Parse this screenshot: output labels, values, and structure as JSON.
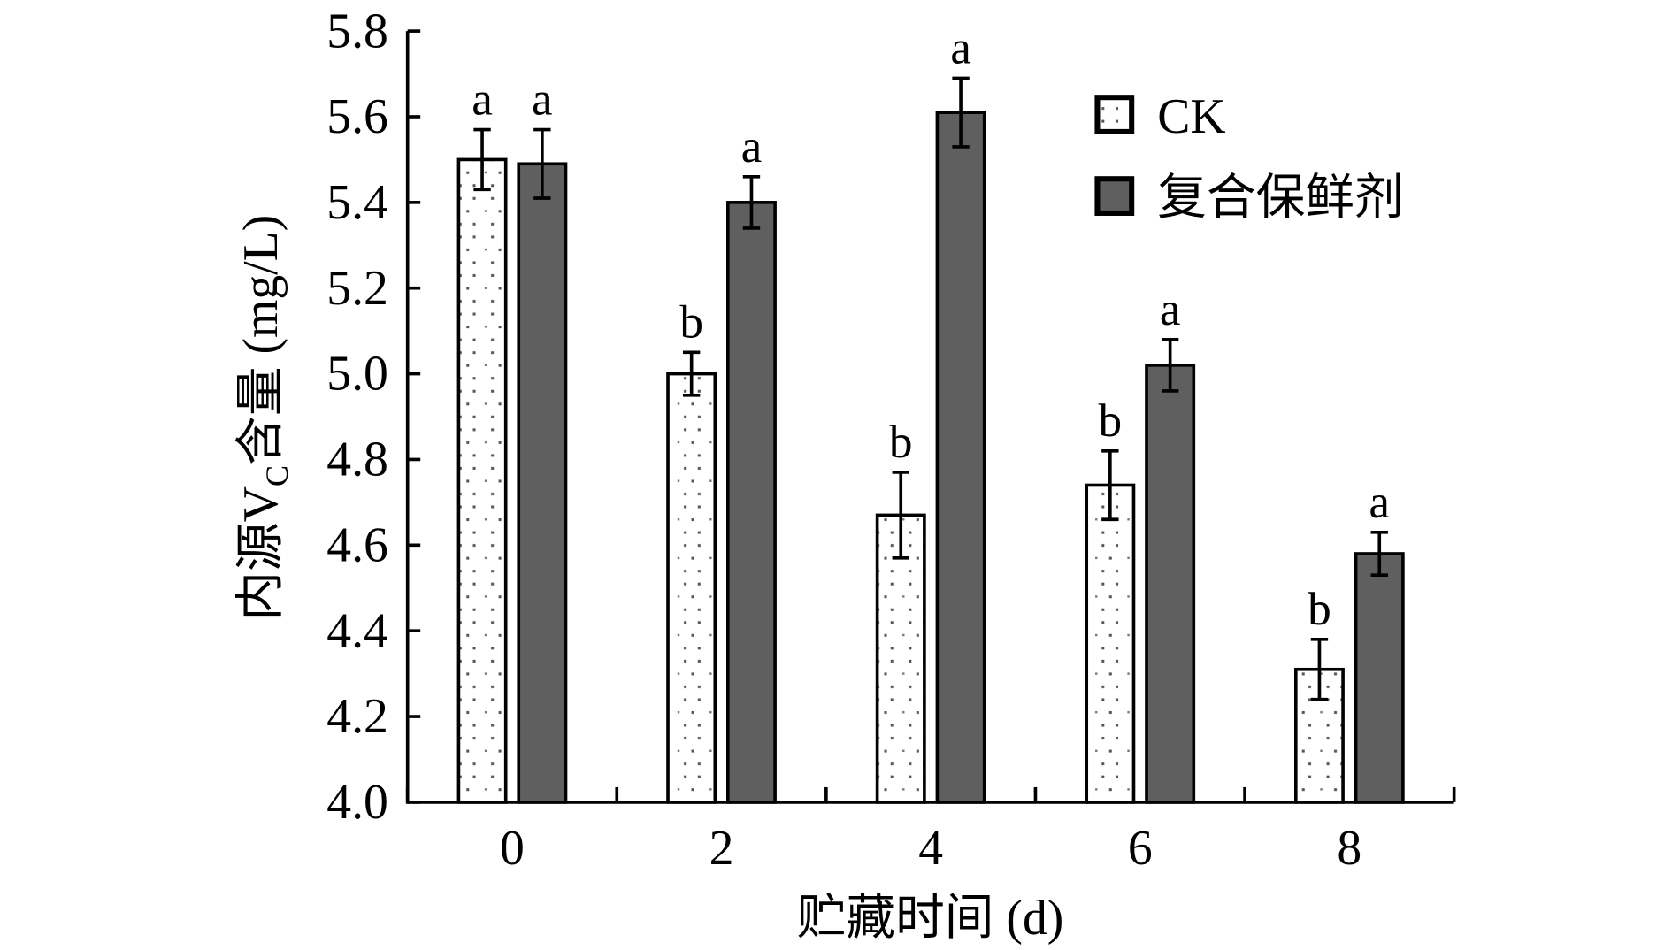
{
  "chart_data": {
    "type": "bar",
    "title": "",
    "xlabel": "贮藏时间 (d)",
    "ylabel": {
      "prefix": "内源V",
      "subscript": "C",
      "suffix": "含量 (mg/L)"
    },
    "categories": [
      "0",
      "2",
      "4",
      "6",
      "8"
    ],
    "ylim": [
      4.0,
      5.8
    ],
    "yticks": [
      "4.0",
      "4.2",
      "4.4",
      "4.6",
      "4.8",
      "5.0",
      "5.2",
      "5.4",
      "5.6",
      "5.8"
    ],
    "grid": false,
    "legend_position": "top-right",
    "series": [
      {
        "name": "CK",
        "pattern": "white-dotted",
        "color": "#ffffff",
        "values": [
          5.5,
          5.0,
          4.67,
          4.74,
          4.31
        ],
        "errors": [
          0.07,
          0.05,
          0.1,
          0.08,
          0.07
        ],
        "letters": [
          "a",
          "b",
          "b",
          "b",
          "b"
        ]
      },
      {
        "name": "复合保鲜剂",
        "pattern": "dark-gray",
        "color": "#5f5f5f",
        "values": [
          5.49,
          5.4,
          5.61,
          5.02,
          4.58
        ],
        "errors": [
          0.08,
          0.06,
          0.08,
          0.06,
          0.05
        ],
        "letters": [
          "a",
          "a",
          "a",
          "a",
          "a"
        ]
      }
    ]
  }
}
